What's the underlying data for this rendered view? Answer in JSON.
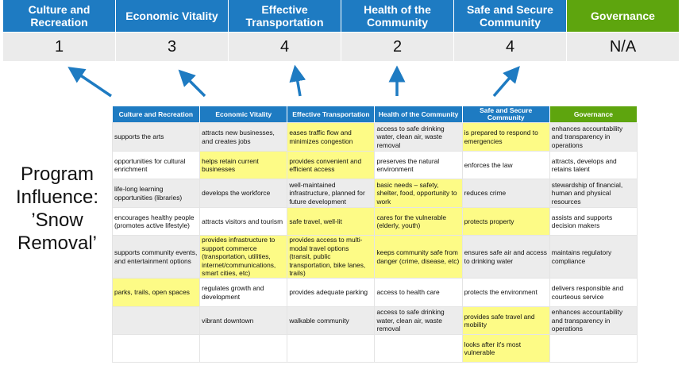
{
  "header": {
    "categories": [
      "Culture and Recreation",
      "Economic Vitality",
      "Effective Transportation",
      "Health of the Community",
      "Safe and Secure Community",
      "Governance"
    ],
    "scores": [
      "1",
      "3",
      "4",
      "2",
      "4",
      "N/A"
    ]
  },
  "label": "Program Influence: ’Snow Removal’",
  "colors": {
    "header_blue": "#1e7bc2",
    "governance_green": "#5ea50e",
    "highlight": "#fdfb86"
  },
  "table": {
    "headers": [
      "Culture and Recreation",
      "Economic Vitality",
      "Effective Transportation",
      "Health of the Community",
      "Safe and Secure Community",
      "Governance"
    ],
    "rows": [
      {
        "cells": [
          "supports the arts",
          "attracts new businesses, and creates jobs",
          "eases traffic flow and minimizes congestion",
          "access to safe drinking water, clean air, waste removal",
          "is prepared to respond to emergencies",
          "enhances accountability and transparency in operations"
        ],
        "highlighted": [
          2,
          4
        ]
      },
      {
        "cells": [
          "opportunities for cultural enrichment",
          "helps retain current businesses",
          "provides convenient and efficient access",
          "preserves the natural environment",
          "enforces the law",
          "attracts, develops and retains talent"
        ],
        "highlighted": [
          1,
          2
        ]
      },
      {
        "cells": [
          "life-long learning opportunities (libraries)",
          "develops the workforce",
          "well-maintained infrastructure, planned for future development",
          "basic needs – safety, shelter, food, opportunity to work",
          "reduces crime",
          "stewardship of financial, human and physical resources"
        ],
        "highlighted": [
          3
        ]
      },
      {
        "cells": [
          "encourages healthy people (promotes active lifestyle)",
          "attracts visitors and tourism",
          "safe travel, well-lit",
          "cares for the vulnerable (elderly, youth)",
          "protects property",
          "assists and supports decision makers"
        ],
        "highlighted": [
          2,
          3,
          4
        ]
      },
      {
        "cells": [
          "supports community events, and entertainment options",
          "provides infrastructure to support commerce (transportation, utilities, internet/communications, smart cities, etc)",
          "provides access to multi-modal travel options (transit, public transportation, bike lanes, trails)",
          "keeps community safe from danger (crime, disease, etc)",
          "ensures safe air and access to drinking water",
          "maintains regulatory compliance"
        ],
        "highlighted": [
          1,
          2,
          3
        ]
      },
      {
        "cells": [
          "parks, trails, open spaces",
          "regulates growth and development",
          "provides adequate parking",
          "access to health care",
          "protects the environment",
          "delivers responsible and courteous service"
        ],
        "highlighted": [
          0
        ]
      },
      {
        "cells": [
          "",
          "vibrant downtown",
          "walkable community",
          "access to safe drinking water, clean air, waste removal",
          "provides safe travel and mobility",
          "enhances accountability and transparency in operations"
        ],
        "highlighted": [
          4
        ]
      },
      {
        "cells": [
          "",
          "",
          "",
          "",
          "looks after it's most vulnerable",
          ""
        ],
        "highlighted": [
          4
        ]
      }
    ]
  }
}
